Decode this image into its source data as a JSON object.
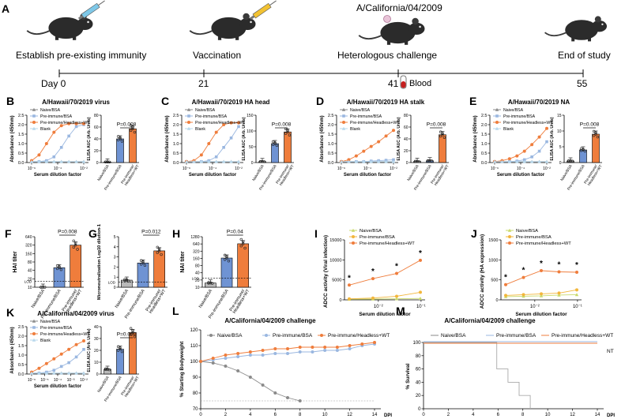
{
  "timeline": {
    "label_A": "A",
    "mouse_labels": [
      "Establish pre-existing immunity",
      "Vaccination",
      "Heterologous challenge",
      "End of study"
    ],
    "challenge_strain": "A/California/04/2009",
    "days": [
      "Day 0",
      "21",
      "41",
      "55"
    ],
    "blood_label": "Blood"
  },
  "common": {
    "x_dilution": "Serum dilution factor",
    "y_absorbance": "Absorbance (450nm)",
    "y_auc": "ELISA AUC (Arb. Units)",
    "groups": [
      "Naive/BSA",
      "Pre-immune/BSA",
      "Pre-immune/Headless+WT"
    ],
    "groups_split": [
      [
        "Naive/BSA"
      ],
      [
        "Pre-immune/BSA"
      ],
      [
        "Pre-immune/",
        "Headless+WT"
      ]
    ],
    "blank": "Blank",
    "lod": "LOD",
    "colors": {
      "naive": "#8a8a8a",
      "bsa": "#9ab7e0",
      "headless": "#ef7d3c",
      "blank": "#b8d8ec",
      "bar_naive": "#b9b9b9",
      "bar_bsa": "#6f93d3",
      "bar_headless": "#ef7d3c"
    }
  },
  "panels": {
    "B": {
      "letter": "B",
      "title": "A/Hawaii/70/2019 virus",
      "p_value": "P=0.008",
      "x_ticks": [
        "10⁻⁶",
        "10⁻⁴",
        "10⁻²"
      ],
      "y_ticks": [
        "0.0",
        "0.5",
        "1.0",
        "1.5",
        "2.0",
        "2.5"
      ],
      "auc_ticks": [
        "0",
        "20",
        "40",
        "60",
        "80"
      ],
      "auc_values": [
        1,
        40,
        57
      ]
    },
    "C": {
      "letter": "C",
      "title": "A/Hawaii/70/2019 HA head",
      "p_value": "P=0.008",
      "x_ticks": [
        "10⁻⁶",
        "10⁻⁴",
        "10⁻²"
      ],
      "y_ticks": [
        "0.0",
        "0.5",
        "1.0",
        "1.5",
        "2.0",
        "2.5"
      ],
      "auc_ticks": [
        "0",
        "50",
        "100",
        "150"
      ],
      "auc_values": [
        3,
        60,
        97
      ]
    },
    "D": {
      "letter": "D",
      "title": "A/Hawaii/70/2019 HA stalk",
      "p_value": "P=0.008",
      "x_ticks": [
        "10⁻⁶",
        "10⁻⁴",
        "10⁻²"
      ],
      "y_ticks": [
        "0.0",
        "0.5",
        "1.0",
        "1.5",
        "2.0",
        "2.5"
      ],
      "auc_ticks": [
        "0",
        "20",
        "40",
        "60",
        "80"
      ],
      "auc_values": [
        2,
        3,
        47
      ]
    },
    "E": {
      "letter": "E",
      "title": "A/Hawaii/70/2019 NA",
      "p_value": "P=0.008",
      "x_ticks": [
        "10⁻⁶",
        "10⁻⁴",
        "10⁻²"
      ],
      "y_ticks": [
        "0.0",
        "0.5",
        "1.0",
        "1.5",
        "2.0",
        "2.5"
      ],
      "auc_ticks": [
        "0",
        "5",
        "10",
        "15"
      ],
      "auc_values": [
        0.5,
        4,
        9
      ]
    },
    "F": {
      "letter": "F",
      "ylabel": "HAI titer",
      "p_value": "P=0.008",
      "y_ticks": [
        "10",
        "20",
        "40",
        "80",
        "160",
        "320",
        "640"
      ],
      "values": [
        10,
        50,
        320
      ]
    },
    "G": {
      "letter": "G",
      "ylabel": "Microneutralization Log10 dilution-1",
      "p_value": "P=0.012",
      "y_ticks": [
        "0",
        "1",
        "2",
        "3",
        "4",
        "5"
      ],
      "values": [
        0.7,
        2.4,
        3.6
      ]
    },
    "H": {
      "letter": "H",
      "ylabel": "NAI titer",
      "p_value": "P=0.04",
      "y_ticks": [
        "10",
        "20",
        "40",
        "80",
        "160",
        "320",
        "640",
        "1280"
      ],
      "values": [
        15,
        165,
        650
      ]
    },
    "I": {
      "letter": "I",
      "ylabel": "ADCC activity (Viral infection)",
      "xlabel": "Serum dilution factor",
      "y_ticks": [
        "0",
        "5000",
        "10000",
        "15000"
      ],
      "x_ticks": [
        "10⁻²",
        "10⁻¹"
      ],
      "stars": [
        "*",
        "*",
        "*",
        "*"
      ]
    },
    "J": {
      "letter": "J",
      "ylabel": "ADCC activity (HA expression)",
      "xlabel": "Serum dilution factor",
      "y_ticks": [
        "0",
        "500",
        "1000",
        "1500"
      ],
      "x_ticks": [
        "10⁻²",
        "10⁻¹"
      ],
      "stars": [
        "*",
        "*",
        "*",
        "*",
        "*"
      ]
    },
    "K": {
      "letter": "K",
      "title": "A/California/04/2009 virus",
      "p_value": "P=0.008",
      "x_ticks": [
        "10⁻⁶",
        "10⁻⁵",
        "10⁻⁴",
        "10⁻³",
        "10⁻²"
      ],
      "y_ticks": [
        "0.0",
        "0.5",
        "1.0",
        "1.5",
        "2.0",
        "2.5"
      ],
      "auc_ticks": [
        "0",
        "10",
        "20",
        "30",
        "40"
      ],
      "auc_values": [
        4,
        21,
        35
      ]
    },
    "L": {
      "letter": "L",
      "title": "A/California/04/2009 challenge",
      "ylabel": "% Starting Bodyweight",
      "xlabel": "DPI",
      "y_ticks": [
        "70",
        "80",
        "90",
        "100",
        "110",
        "120"
      ],
      "x_ticks": [
        "0",
        "2",
        "4",
        "6",
        "8",
        "10",
        "12",
        "14"
      ]
    },
    "M": {
      "letter": "M",
      "title": "A/California/04/2009 challenge",
      "ylabel": "% Survival",
      "xlabel": "DPI",
      "y_ticks": [
        "0",
        "20",
        "40",
        "60",
        "80",
        "100"
      ],
      "x_ticks": [
        "0",
        "2",
        "4",
        "6",
        "8",
        "10",
        "12",
        "14"
      ],
      "nt": "NT"
    }
  },
  "chart_data": [
    {
      "panel": "B",
      "type": "line",
      "x_log10": [
        -6,
        -5.5,
        -5,
        -4.5,
        -4,
        -3.5,
        -3,
        -2.5
      ],
      "series": [
        {
          "name": "Naive/BSA",
          "values": [
            0.05,
            0.05,
            0.05,
            0.05,
            0.05,
            0.05,
            0.05,
            0.05
          ]
        },
        {
          "name": "Pre-immune/BSA",
          "values": [
            0.05,
            0.05,
            0.1,
            0.3,
            0.8,
            1.4,
            1.9,
            2.0
          ]
        },
        {
          "name": "Pre-immune/Headless+WT",
          "values": [
            0.1,
            0.4,
            1.0,
            1.6,
            1.95,
            2.05,
            2.05,
            2.05
          ]
        },
        {
          "name": "Blank",
          "values": [
            0.05,
            0.05,
            0.05,
            0.05,
            0.05,
            0.05,
            0.05,
            0.05
          ]
        }
      ]
    },
    {
      "panel": "I",
      "type": "line",
      "x": [
        "10⁻²·⁵",
        "10⁻²",
        "10⁻¹·⁵",
        "10⁻¹"
      ],
      "series": [
        {
          "name": "Naive/BSA",
          "values": [
            200,
            250,
            300,
            400
          ]
        },
        {
          "name": "Pre-immune/BSA",
          "values": [
            300,
            500,
            900,
            1900
          ]
        },
        {
          "name": "Pre-immune/Headless+WT",
          "values": [
            3700,
            5300,
            6600,
            9900
          ]
        }
      ]
    },
    {
      "panel": "L",
      "type": "line",
      "x": [
        0,
        1,
        2,
        3,
        4,
        5,
        6,
        7,
        8,
        9,
        10,
        11,
        12,
        13,
        14
      ],
      "series": [
        {
          "name": "Naive/BSA",
          "values": [
            100,
            99,
            97,
            94,
            90,
            85,
            80,
            77,
            75,
            null,
            null,
            null,
            null,
            null,
            null
          ]
        },
        {
          "name": "Pre-immune/BSA",
          "values": [
            100,
            101,
            102,
            103,
            104,
            104,
            105,
            105,
            106,
            106,
            107,
            107,
            108,
            110,
            111
          ]
        },
        {
          "name": "Pre-immune/Headless+WT",
          "values": [
            100,
            102,
            104,
            105,
            106,
            107,
            108,
            108,
            109,
            109,
            109,
            109,
            110,
            111,
            112
          ]
        }
      ]
    },
    {
      "panel": "M",
      "type": "line",
      "x": [
        0,
        5,
        6,
        7,
        8,
        9,
        14
      ],
      "series": [
        {
          "name": "Naive/BSA",
          "values": [
            100,
            100,
            60,
            40,
            20,
            0,
            0
          ]
        },
        {
          "name": "Pre-immune/BSA",
          "values": [
            100,
            100,
            100,
            100,
            100,
            100,
            100
          ]
        },
        {
          "name": "Pre-immune/Headless+WT",
          "values": [
            100,
            100,
            100,
            100,
            100,
            100,
            100
          ]
        }
      ]
    }
  ]
}
